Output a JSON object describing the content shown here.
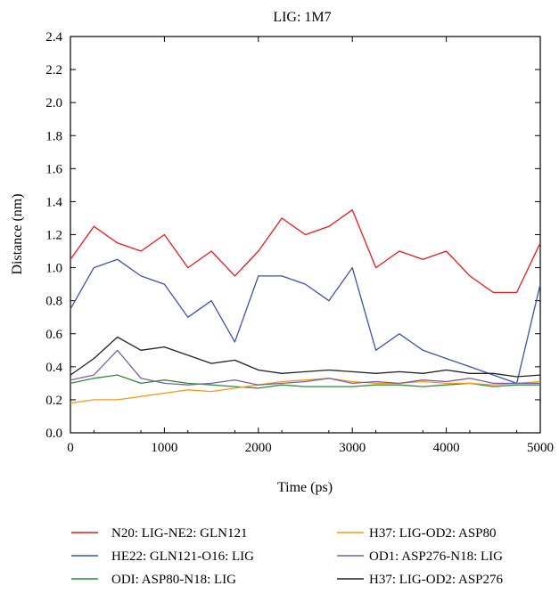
{
  "chart_data": {
    "type": "line",
    "title": "LIG: 1M7",
    "xlabel": "Time (ps)",
    "ylabel": "Distance (nm)",
    "xlim": [
      0,
      5000
    ],
    "ylim": [
      0,
      2.4
    ],
    "xticks": [
      0,
      1000,
      2000,
      3000,
      4000,
      5000
    ],
    "yticks": [
      0.0,
      0.2,
      0.4,
      0.6,
      0.8,
      1.0,
      1.2,
      1.4,
      1.6,
      1.8,
      2.0,
      2.2,
      2.4
    ],
    "ytick_labels": [
      "0.0",
      "0.2",
      "0.4",
      "0.6",
      "0.8",
      "1.0",
      "1.2",
      "1.4",
      "1.6",
      "1.8",
      "2.0",
      "2.2",
      "2.4"
    ],
    "grid": false,
    "legend_position": "bottom",
    "x": [
      0,
      250,
      500,
      750,
      1000,
      1250,
      1500,
      1750,
      2000,
      2250,
      2500,
      2750,
      3000,
      3250,
      3500,
      3750,
      4000,
      4250,
      4500,
      4750,
      5000
    ],
    "series": [
      {
        "name": "N20: LIG-NE2: GLN121",
        "color": "#e31a1c",
        "values": [
          1.05,
          1.25,
          1.15,
          1.1,
          1.2,
          1.0,
          1.1,
          0.95,
          1.1,
          1.3,
          1.2,
          1.25,
          1.35,
          1.0,
          1.1,
          1.05,
          1.1,
          0.95,
          0.85,
          0.85,
          1.15
        ]
      },
      {
        "name": "HE22: GLN121-O16: LIG",
        "color": "#3a55a4",
        "values": [
          0.75,
          1.0,
          1.05,
          0.95,
          0.9,
          0.7,
          0.8,
          0.55,
          0.95,
          0.95,
          0.9,
          0.8,
          1.0,
          0.5,
          0.6,
          0.5,
          0.45,
          0.4,
          0.35,
          0.3,
          0.9
        ]
      },
      {
        "name": "ODI: ASP80-N18: LIG",
        "color": "#2e8b3a",
        "values": [
          0.3,
          0.33,
          0.35,
          0.3,
          0.32,
          0.3,
          0.29,
          0.28,
          0.27,
          0.29,
          0.28,
          0.28,
          0.28,
          0.29,
          0.29,
          0.28,
          0.29,
          0.3,
          0.28,
          0.29,
          0.29
        ]
      },
      {
        "name": "H37: LIG-OD2: ASP80",
        "color": "#f39a1c",
        "values": [
          0.18,
          0.2,
          0.2,
          0.22,
          0.24,
          0.26,
          0.25,
          0.27,
          0.29,
          0.31,
          0.32,
          0.33,
          0.31,
          0.3,
          0.3,
          0.31,
          0.3,
          0.3,
          0.29,
          0.3,
          0.31
        ]
      },
      {
        "name": "OD1: ASP276-N18: LIG",
        "color": "#7b5ea8",
        "values": [
          0.32,
          0.35,
          0.5,
          0.33,
          0.3,
          0.29,
          0.3,
          0.32,
          0.29,
          0.3,
          0.31,
          0.33,
          0.3,
          0.31,
          0.3,
          0.32,
          0.31,
          0.33,
          0.3,
          0.3,
          0.3
        ]
      },
      {
        "name": "H37: LIG-OD2: ASP276",
        "color": "#222222",
        "values": [
          0.35,
          0.45,
          0.58,
          0.5,
          0.52,
          0.47,
          0.42,
          0.44,
          0.38,
          0.36,
          0.37,
          0.38,
          0.37,
          0.36,
          0.37,
          0.36,
          0.38,
          0.36,
          0.36,
          0.34,
          0.35
        ]
      }
    ]
  }
}
